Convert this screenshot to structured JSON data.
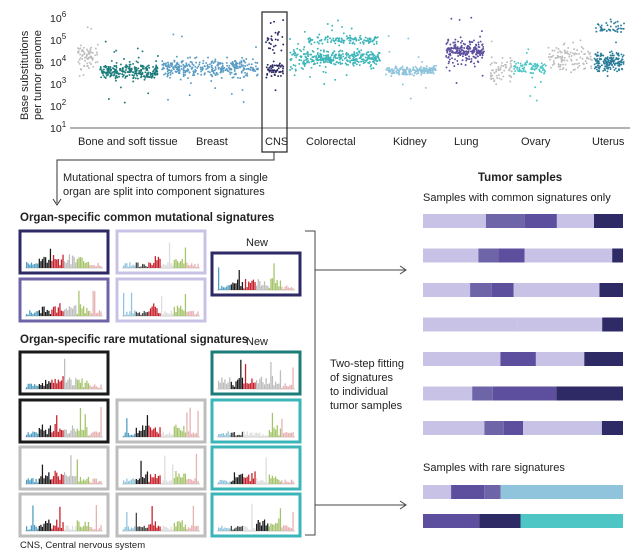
{
  "colors": {
    "grey": "#bdbdbd",
    "darkteal": "#1b7c7a",
    "blue": "#5a9cc4",
    "navy": "#2e2a66",
    "cyan": "#3cb5b8",
    "lightblue": "#8fc4dc",
    "purple": "#5e4f9e",
    "tealblue": "#2a7d9a",
    "lavender": "#c8c3e6",
    "medpurple": "#6e64a8",
    "teal": "#4fc6c6",
    "red": "#c8202a",
    "green": "#a6c46a",
    "black": "#1a1a1a",
    "pink": "#e6b1b1",
    "skyblue": "#4e9dc2"
  },
  "scatter": {
    "y_axis_label_line1": "Base substitutions",
    "y_axis_label_line2": "per tumor genome",
    "y_ticks": [
      "10",
      "10",
      "10",
      "10",
      "10",
      "10"
    ],
    "y_tick_exponents": [
      "6",
      "5",
      "4",
      "3",
      "2",
      "1"
    ],
    "categories": [
      "Bone and soft tissue",
      "Breast",
      "CNS",
      "Colorectal",
      "Kidney",
      "Lung",
      "Ovary",
      "Uterus"
    ]
  },
  "arrow_note_line1": "Mutational spectra of tumors from a single",
  "arrow_note_line2": "organ are split into component signatures",
  "common_title": "Organ-specific common mutational signatures",
  "rare_title": "Organ-specific rare mutational signatures",
  "new_label_common": "New",
  "new_label_rare": "New",
  "fitting_text": [
    "Two-step fitting",
    "of signatures",
    "to individual",
    "tumor samples"
  ],
  "tumor_samples_title": "Tumor samples",
  "common_only_label": "Samples with common signatures only",
  "rare_label": "Samples with rare signatures",
  "footnote": "CNS, Central nervous system",
  "common_bars": [
    [
      [
        "lavender",
        0.39
      ],
      [
        "medpurple",
        0.24
      ],
      [
        "purple",
        0.2
      ],
      [
        "lavender",
        0.23
      ],
      [
        "navy",
        0.18
      ]
    ],
    [
      [
        "lavender",
        0.36
      ],
      [
        "medpurple",
        0.13
      ],
      [
        "purple",
        0.17
      ],
      [
        "lavender",
        0.57
      ],
      [
        "navy",
        0.07
      ]
    ],
    [
      [
        "lavender",
        0.28
      ],
      [
        "medpurple",
        0.13
      ],
      [
        "purple",
        0.13
      ],
      [
        "lavender",
        0.51
      ],
      [
        "navy",
        0.14
      ]
    ],
    [
      [
        "lavender",
        0.59
      ],
      [
        "lavender",
        0.53
      ],
      [
        "navy",
        0.13
      ]
    ],
    [
      [
        "lavender",
        0.48
      ],
      [
        "purple",
        0.22
      ],
      [
        "lavender",
        0.3
      ],
      [
        "navy",
        0.24
      ]
    ],
    [
      [
        "lavender",
        0.31
      ],
      [
        "medpurple",
        0.13
      ],
      [
        "purple",
        0.4
      ],
      [
        "navy",
        0.42
      ]
    ],
    [
      [
        "lavender",
        0.35
      ],
      [
        "medpurple",
        0.11
      ],
      [
        "purple",
        0.11
      ],
      [
        "lavender",
        0.45
      ],
      [
        "navy",
        0.12
      ]
    ]
  ],
  "rare_bars": [
    [
      [
        "lavender",
        0.17
      ],
      [
        "purple",
        0.2
      ],
      [
        "medpurple",
        0.1
      ],
      [
        "lightblue",
        0.74
      ]
    ],
    [
      [
        "purple",
        0.34
      ],
      [
        "navy",
        0.25
      ],
      [
        "teal",
        0.62
      ]
    ]
  ]
}
